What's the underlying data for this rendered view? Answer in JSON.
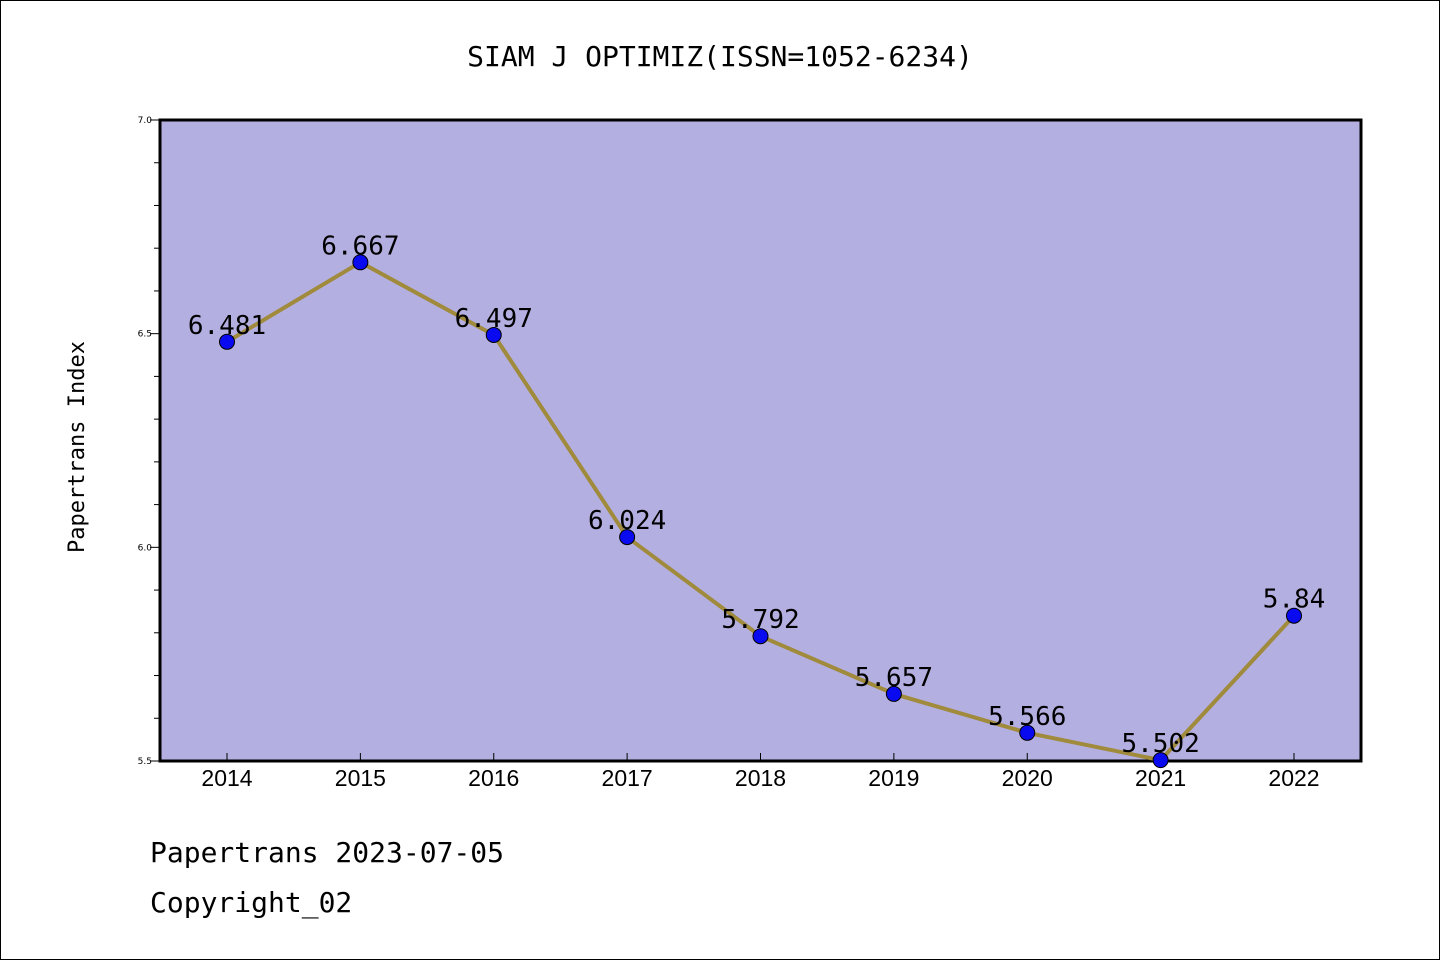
{
  "colors": {
    "plot_background": "#b4afe1",
    "line": "#a08a3c",
    "marker": "#0a0af0",
    "axis": "#000000"
  },
  "chart_data": {
    "type": "line",
    "title": "SIAM J OPTIMIZ(ISSN=1052-6234)",
    "xlabel": "",
    "ylabel": "Papertrans Index",
    "categories": [
      "2014",
      "2015",
      "2016",
      "2017",
      "2018",
      "2019",
      "2020",
      "2021",
      "2022"
    ],
    "values": [
      6.481,
      6.667,
      6.497,
      6.024,
      5.792,
      5.657,
      5.566,
      5.502,
      5.84
    ],
    "data_labels": [
      "6.481",
      "6.667",
      "6.497",
      "6.024",
      "5.792",
      "5.657",
      "5.566",
      "5.502",
      "5.84"
    ],
    "ylim": [
      5.5,
      7.0
    ],
    "yticks": [
      "5.5",
      "6.0",
      "6.5",
      "7.0"
    ],
    "grid": false,
    "legend": "none"
  },
  "footer": {
    "line1": "Papertrans 2023-07-05",
    "line2": "Copyright_02"
  }
}
